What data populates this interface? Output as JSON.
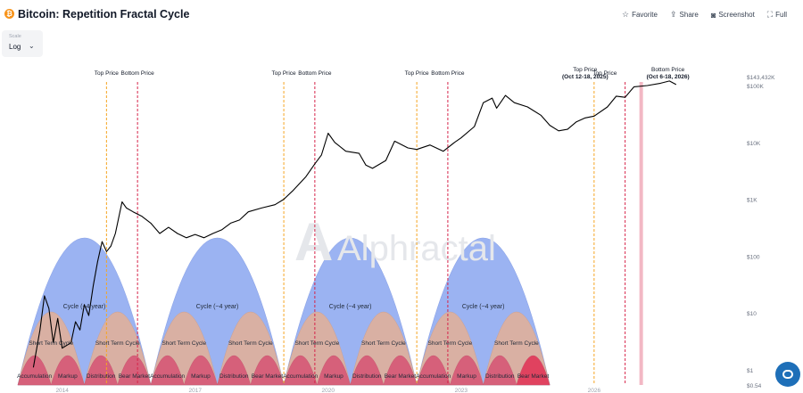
{
  "header": {
    "title": "Bitcoin: Repetition Fractal Cycle",
    "coin_icon": "bitcoin-icon",
    "actions": [
      {
        "label": "Favorite",
        "icon": "star-icon"
      },
      {
        "label": "Share",
        "icon": "share-icon"
      },
      {
        "label": "Screenshot",
        "icon": "camera-icon"
      },
      {
        "label": "Full",
        "icon": "fullscreen-icon"
      }
    ]
  },
  "scale": {
    "label": "Scale",
    "value": "Log"
  },
  "watermark": "Alphractal",
  "chart_data": {
    "type": "line",
    "y_scale": "log",
    "price_series": [
      [
        2013.35,
        1.1
      ],
      [
        2013.5,
        5
      ],
      [
        2013.6,
        20
      ],
      [
        2013.7,
        12
      ],
      [
        2013.8,
        3
      ],
      [
        2013.9,
        8
      ],
      [
        2014.0,
        2.4
      ],
      [
        2014.2,
        3
      ],
      [
        2014.3,
        7
      ],
      [
        2014.4,
        5
      ],
      [
        2014.5,
        14
      ],
      [
        2014.6,
        9
      ],
      [
        2014.7,
        30
      ],
      [
        2014.8,
        80
      ],
      [
        2014.9,
        180
      ],
      [
        2015.0,
        120
      ],
      [
        2015.1,
        150
      ],
      [
        2015.2,
        250
      ],
      [
        2015.35,
        900
      ],
      [
        2015.45,
        700
      ],
      [
        2015.6,
        600
      ],
      [
        2015.8,
        500
      ],
      [
        2016.0,
        380
      ],
      [
        2016.2,
        250
      ],
      [
        2016.4,
        320
      ],
      [
        2016.6,
        250
      ],
      [
        2016.8,
        210
      ],
      [
        2017.0,
        240
      ],
      [
        2017.2,
        210
      ],
      [
        2017.4,
        250
      ],
      [
        2017.6,
        290
      ],
      [
        2017.8,
        380
      ],
      [
        2018.0,
        430
      ],
      [
        2018.2,
        600
      ],
      [
        2018.5,
        700
      ],
      [
        2018.8,
        800
      ],
      [
        2019.0,
        1000
      ],
      [
        2019.2,
        1400
      ],
      [
        2019.5,
        2500
      ],
      [
        2019.7,
        4200
      ],
      [
        2019.85,
        6000
      ],
      [
        2020.0,
        14500
      ],
      [
        2020.15,
        10000
      ],
      [
        2020.4,
        7000
      ],
      [
        2020.7,
        6400
      ],
      [
        2020.85,
        4000
      ],
      [
        2021.0,
        3500
      ],
      [
        2021.3,
        4800
      ],
      [
        2021.5,
        10500
      ],
      [
        2021.8,
        8000
      ],
      [
        2022.0,
        7500
      ],
      [
        2022.3,
        9000
      ],
      [
        2022.6,
        7000
      ],
      [
        2022.85,
        10000
      ],
      [
        2023.0,
        12000
      ],
      [
        2023.3,
        19000
      ],
      [
        2023.5,
        50000
      ],
      [
        2023.7,
        60000
      ],
      [
        2023.8,
        40000
      ],
      [
        2024.0,
        67000
      ],
      [
        2024.2,
        50000
      ],
      [
        2024.5,
        42000
      ],
      [
        2024.8,
        30000
      ],
      [
        2025.0,
        20000
      ],
      [
        2025.2,
        16000
      ],
      [
        2025.4,
        17000
      ],
      [
        2025.6,
        23000
      ],
      [
        2025.8,
        27000
      ],
      [
        2026.0,
        29000
      ],
      [
        2026.3,
        42000
      ],
      [
        2026.5,
        65000
      ],
      [
        2026.7,
        62000
      ],
      [
        2026.9,
        95000
      ],
      [
        2027.2,
        100000
      ],
      [
        2027.5,
        110000
      ],
      [
        2027.7,
        120000
      ],
      [
        2027.85,
        104000
      ]
    ],
    "y_ticks": [
      {
        "label": "$0.54",
        "value": 0.54
      },
      {
        "label": "$1",
        "value": 1
      },
      {
        "label": "$10",
        "value": 10
      },
      {
        "label": "$100",
        "value": 100
      },
      {
        "label": "$1K",
        "value": 1000
      },
      {
        "label": "$10K",
        "value": 10000
      },
      {
        "label": "$100K",
        "value": 100000
      },
      {
        "label": "$143,432K",
        "value": 143432
      }
    ],
    "x_ticks": [
      {
        "label": "2014",
        "value": 2014
      },
      {
        "label": "2017",
        "value": 2017
      },
      {
        "label": "2020",
        "value": 2020
      },
      {
        "label": "2023",
        "value": 2023
      },
      {
        "label": "2026",
        "value": 2026
      }
    ],
    "vertical_markers": [
      {
        "x": 2015.0,
        "kind": "top",
        "label": "Top Price"
      },
      {
        "x": 2015.7,
        "kind": "bottom",
        "label": "Bottom Price"
      },
      {
        "x": 2019.0,
        "kind": "top",
        "label": "Top Price"
      },
      {
        "x": 2019.7,
        "kind": "bottom",
        "label": "Bottom Price"
      },
      {
        "x": 2022.0,
        "kind": "top",
        "label": "Top Price"
      },
      {
        "x": 2022.7,
        "kind": "bottom",
        "label": "Bottom Price"
      },
      {
        "x": 2026.0,
        "kind": "top",
        "label": "Top Price"
      },
      {
        "x": 2026.7,
        "kind": "bottom",
        "label": "Bottom Price"
      }
    ],
    "forecast_labels": [
      {
        "label": "Top Price",
        "sub": "(Oct 12-18, 2025)"
      },
      {
        "label": "Bottom Price",
        "sub": "(Oct 6-18, 2026)"
      }
    ],
    "cycles": [
      {
        "start": 2013.0,
        "end": 2016.0,
        "label": "Cycle (~4 year)",
        "short_term": [
          "Short Term Cycle",
          "Short Term Cycle"
        ],
        "phases": [
          "Accumulation",
          "Markup",
          "Distribution",
          "Bear Market"
        ]
      },
      {
        "start": 2016.0,
        "end": 2019.0,
        "label": "Cycle (~4 year)",
        "short_term": [
          "Short Term Cycle",
          "Short Term Cycle"
        ],
        "phases": [
          "Accumulation",
          "Markup",
          "Distribution",
          "Bear Market"
        ]
      },
      {
        "start": 2019.0,
        "end": 2022.0,
        "label": "Cycle (~4 year)",
        "short_term": [
          "Short Term Cycle",
          "Short Term Cycle"
        ],
        "phases": [
          "Accumulation",
          "Markup",
          "Distribution",
          "Bear Market"
        ]
      },
      {
        "start": 2022.0,
        "end": 2025.0,
        "label": "Cycle (~4 year)",
        "short_term": [
          "Short Term Cycle",
          "Short Term Cycle"
        ],
        "phases": [
          "Accumulation",
          "Markup",
          "Distribution",
          "Bear Market"
        ]
      }
    ],
    "colors": {
      "price_line": "#000000",
      "top_marker": "#f5a623",
      "bottom_marker": "#d6244a",
      "big_arc": "#9bb3f2",
      "short_arc": "#d9b0a3",
      "phase_arc": "#d6607a",
      "last_phase": "#e0425f",
      "forecast_band": "#f2b8c4"
    }
  }
}
